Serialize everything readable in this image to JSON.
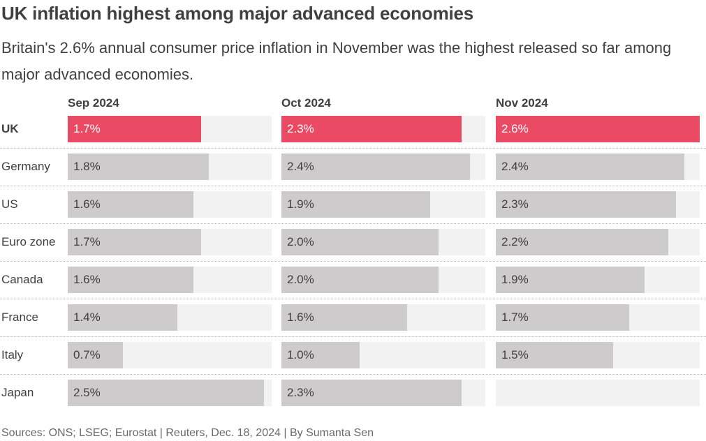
{
  "title": "UK inflation highest among major advanced economies",
  "subtitle": "Britain's 2.6% annual consumer price inflation in November was the highest released so far among major advanced economies.",
  "source": "Sources: ONS; LSEG; Eurostat | Reuters, Dec. 18, 2024 | By Sumanta Sen",
  "colors": {
    "highlight": "#ea4a63",
    "bar": "#cdcbcc",
    "track": "#f2f2f3",
    "text": "#404040"
  },
  "chart_data": {
    "type": "bar",
    "orientation": "horizontal",
    "layout": "small-multiples",
    "title": "UK inflation highest among major advanced economies",
    "subtitle": "Britain's 2.6% annual consumer price inflation in November was the highest released so far among major advanced economies.",
    "unit": "%",
    "xlim": [
      0,
      2.6
    ],
    "grid": false,
    "legend": "none",
    "highlight_category": "UK",
    "categories": [
      "UK",
      "Germany",
      "US",
      "Euro zone",
      "Canada",
      "France",
      "Italy",
      "Japan"
    ],
    "series": [
      {
        "name": "Sep 2024",
        "values": [
          1.7,
          1.8,
          1.6,
          1.7,
          1.6,
          1.4,
          0.7,
          2.5
        ],
        "labels": [
          "1.7%",
          "1.8%",
          "1.6%",
          "1.7%",
          "1.6%",
          "1.4%",
          "0.7%",
          "2.5%"
        ]
      },
      {
        "name": "Oct 2024",
        "values": [
          2.3,
          2.4,
          1.9,
          2.0,
          2.0,
          1.6,
          1.0,
          2.3
        ],
        "labels": [
          "2.3%",
          "2.4%",
          "1.9%",
          "2.0%",
          "2.0%",
          "1.6%",
          "1.0%",
          "2.3%"
        ]
      },
      {
        "name": "Nov 2024",
        "values": [
          2.6,
          2.4,
          2.3,
          2.2,
          1.9,
          1.7,
          1.5,
          null
        ],
        "labels": [
          "2.6%",
          "2.4%",
          "2.3%",
          "2.2%",
          "1.9%",
          "1.7%",
          "1.5%",
          ""
        ]
      }
    ]
  }
}
